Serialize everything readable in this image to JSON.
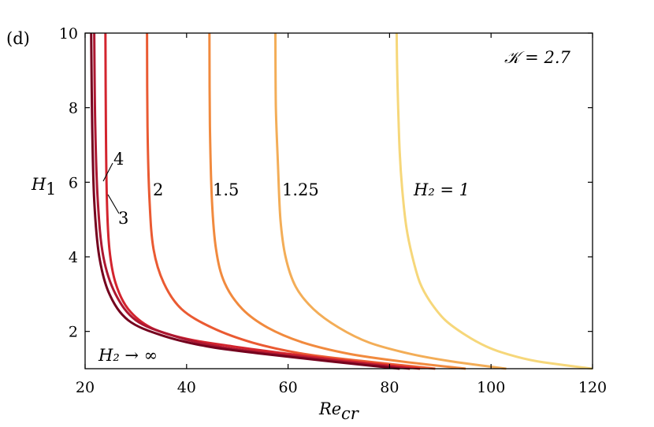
{
  "chart_data": {
    "type": "line",
    "panel_label": "(d)",
    "parameter_label": "𝒦 = 2.7",
    "xlabel": "Re",
    "xlabel_sub": "cr",
    "ylabel": "H",
    "ylabel_sub": "1",
    "xlim": [
      20,
      120
    ],
    "ylim": [
      1,
      10
    ],
    "xticks": [
      "20",
      "40",
      "60",
      "80",
      "100",
      "120"
    ],
    "yticks": [
      "2",
      "4",
      "6",
      "8",
      "10"
    ],
    "grid": false,
    "series": [
      {
        "name": "H₂ = 1",
        "color": "#f6d77a",
        "x": [
          120.0,
          109.0,
          103.0,
          99.0,
          95.0,
          91.0,
          88.0,
          86.0,
          84.5,
          83.3,
          82.5,
          82.0,
          81.7,
          81.5,
          81.4
        ],
        "y": [
          1.0,
          1.2,
          1.4,
          1.6,
          1.9,
          2.3,
          2.8,
          3.3,
          4.0,
          4.8,
          5.8,
          6.8,
          8.0,
          9.0,
          10.0
        ]
      },
      {
        "name": "1.25",
        "color": "#f3ad57",
        "x": [
          103.0,
          92.0,
          84.0,
          76.0,
          70.0,
          65.0,
          61.5,
          59.5,
          58.5,
          58.0,
          57.6,
          57.5
        ],
        "y": [
          1.0,
          1.2,
          1.4,
          1.7,
          2.1,
          2.6,
          3.2,
          4.0,
          5.0,
          6.5,
          8.0,
          10.0
        ]
      },
      {
        "name": "1.5",
        "color": "#f18a3e",
        "x": [
          95.0,
          82.0,
          72.0,
          63.0,
          56.0,
          51.0,
          47.5,
          45.8,
          45.0,
          44.6,
          44.5
        ],
        "y": [
          1.0,
          1.2,
          1.4,
          1.7,
          2.1,
          2.6,
          3.3,
          4.2,
          5.5,
          7.5,
          10.0
        ]
      },
      {
        "name": "2",
        "color": "#ea5a32",
        "x": [
          89.0,
          75.0,
          63.0,
          53.0,
          45.0,
          39.0,
          35.5,
          33.5,
          32.7,
          32.3,
          32.2
        ],
        "y": [
          1.0,
          1.2,
          1.4,
          1.7,
          2.1,
          2.6,
          3.3,
          4.2,
          5.5,
          7.5,
          10.0
        ]
      },
      {
        "name": "3",
        "color": "#d3242e",
        "x": [
          86.0,
          72.0,
          60.0,
          49.0,
          40.0,
          33.0,
          28.5,
          26.0,
          24.8,
          24.3,
          24.1,
          24.0
        ],
        "y": [
          1.0,
          1.2,
          1.4,
          1.6,
          1.8,
          2.1,
          2.6,
          3.3,
          4.2,
          5.5,
          7.5,
          10.0
        ]
      },
      {
        "name": "4",
        "color": "#ad1731",
        "x": [
          84.0,
          70.0,
          57.0,
          46.0,
          37.0,
          30.0,
          26.0,
          23.6,
          22.5,
          22.0,
          21.8
        ],
        "y": [
          1.0,
          1.2,
          1.4,
          1.6,
          1.9,
          2.3,
          3.0,
          4.0,
          5.5,
          7.5,
          10.0
        ]
      },
      {
        "name": "H₂ → ∞",
        "color": "#74021e",
        "x": [
          82.0,
          68.0,
          55.0,
          44.0,
          35.0,
          28.5,
          24.8,
          22.8,
          21.8,
          21.4,
          21.2
        ],
        "y": [
          1.0,
          1.2,
          1.4,
          1.6,
          1.9,
          2.3,
          3.0,
          4.0,
          5.5,
          7.5,
          10.0
        ]
      }
    ],
    "annotations": [
      "4",
      "3",
      "2",
      "1.5",
      "1.25",
      "H₂ = 1",
      "H₂ → ∞"
    ]
  }
}
